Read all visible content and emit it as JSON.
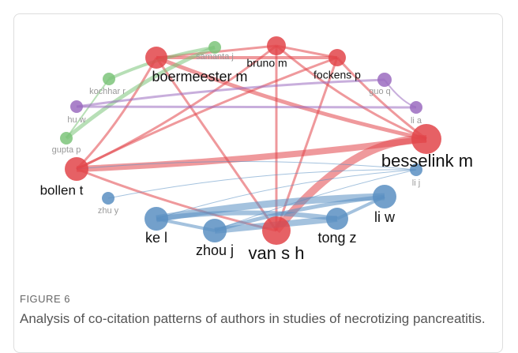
{
  "nodes": [
    {
      "label": "samanta j"
    },
    {
      "label": "boermeester m"
    },
    {
      "label": "bruno m"
    },
    {
      "label": "fockens p"
    },
    {
      "label": "kochhar r"
    },
    {
      "label": "guo q"
    },
    {
      "label": "hu w"
    },
    {
      "label": "li a"
    },
    {
      "label": "gupta p"
    },
    {
      "label": "besselink m"
    },
    {
      "label": "bollen t"
    },
    {
      "label": "li j"
    },
    {
      "label": "zhu y"
    },
    {
      "label": "li w"
    },
    {
      "label": "ke l"
    },
    {
      "label": "tong z"
    },
    {
      "label": "zhou j"
    },
    {
      "label": "van s h"
    }
  ],
  "caption": {
    "label": "FIGURE 6",
    "text": "Analysis of co-citation patterns of authors in studies of necrotizing pancreatitis."
  }
}
